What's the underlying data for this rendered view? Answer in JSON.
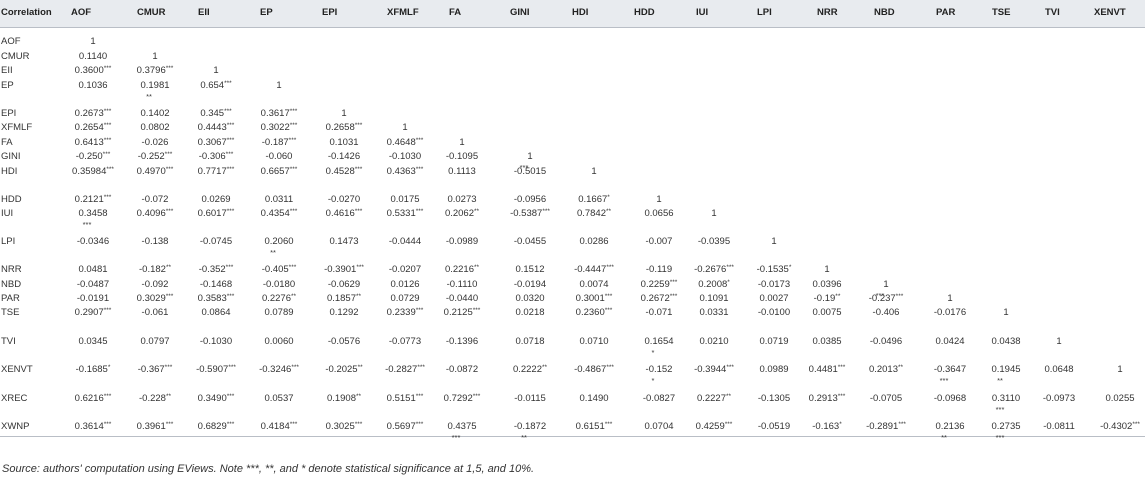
{
  "table": {
    "corner_label": "Correlation",
    "columns": [
      "AOF",
      "CMUR",
      "EII",
      "EP",
      "EPI",
      "XFMLF",
      "FA",
      "GINI",
      "HDI",
      "HDD",
      "IUI",
      "LPI",
      "NRR",
      "NBD",
      "PAR",
      "TSE",
      "TVI",
      "XENVT"
    ],
    "rows": [
      {
        "label": "AOF",
        "cells": [
          [
            "1",
            ""
          ]
        ]
      },
      {
        "label": "CMUR",
        "cells": [
          [
            "0.1140",
            ""
          ],
          [
            "1",
            ""
          ]
        ]
      },
      {
        "label": "EII",
        "cells": [
          [
            "0.3600",
            "***"
          ],
          [
            "0.3796",
            "***"
          ],
          [
            "1",
            ""
          ]
        ]
      },
      {
        "label": "EP",
        "cells": [
          [
            "0.1036",
            ""
          ],
          [
            "0.1981",
            ""
          ],
          [
            "0.654",
            "***"
          ],
          [
            "1",
            ""
          ]
        ]
      },
      {
        "label": "EPI",
        "cells": [
          [
            "0.2673",
            "***"
          ],
          [
            "0.1402",
            ""
          ],
          [
            "0.345",
            "***"
          ],
          [
            "0.3617",
            "***"
          ],
          [
            "1",
            ""
          ]
        ]
      },
      {
        "label": "XFMLF",
        "cells": [
          [
            "0.2654",
            "***"
          ],
          [
            "0.0802",
            ""
          ],
          [
            "0.4443",
            "***"
          ],
          [
            "0.3022",
            "***"
          ],
          [
            "0.2658",
            "***"
          ],
          [
            "1",
            ""
          ]
        ]
      },
      {
        "label": "FA",
        "cells": [
          [
            "0.6413",
            "***"
          ],
          [
            "-0.026",
            ""
          ],
          [
            "0.3067",
            "***"
          ],
          [
            "-0.187",
            "***"
          ],
          [
            "0.1031",
            ""
          ],
          [
            "0.4648",
            "***"
          ],
          [
            "1",
            ""
          ]
        ]
      },
      {
        "label": "GINI",
        "cells": [
          [
            "-0.250",
            "***"
          ],
          [
            "-0.252",
            "***"
          ],
          [
            "-0.306",
            "***"
          ],
          [
            "-0.060",
            ""
          ],
          [
            "-0.1426",
            ""
          ],
          [
            "-0.1030",
            ""
          ],
          [
            "-0.1095",
            ""
          ],
          [
            "1",
            ""
          ]
        ]
      },
      {
        "label": "HDI",
        "cells": [
          [
            "0.35984",
            "***"
          ],
          [
            "0.4970",
            "***"
          ],
          [
            "0.7717",
            "***"
          ],
          [
            "0.6657",
            "***"
          ],
          [
            "0.4528",
            "***"
          ],
          [
            "0.4363",
            "***"
          ],
          [
            "0.1113",
            ""
          ],
          [
            "-0.5015",
            ""
          ],
          [
            "1",
            ""
          ]
        ]
      },
      {
        "label": "HDD",
        "cells": [
          [
            "0.2121",
            "***"
          ],
          [
            "-0.072",
            ""
          ],
          [
            "0.0269",
            ""
          ],
          [
            "0.0311",
            ""
          ],
          [
            "-0.0270",
            ""
          ],
          [
            "0.0175",
            ""
          ],
          [
            "0.0273",
            ""
          ],
          [
            "-0.0956",
            ""
          ],
          [
            "0.1667",
            "*"
          ],
          [
            "1",
            ""
          ]
        ]
      },
      {
        "label": "IUI",
        "cells": [
          [
            "0.3458",
            ""
          ],
          [
            "0.4096",
            "***"
          ],
          [
            "0.6017",
            "***"
          ],
          [
            "0.4354",
            "***"
          ],
          [
            "0.4616",
            "***"
          ],
          [
            "0.5331",
            "***"
          ],
          [
            "0.2062",
            "**"
          ],
          [
            "-0.5387",
            "***"
          ],
          [
            "0.7842",
            "**"
          ],
          [
            "0.0656",
            ""
          ],
          [
            "1",
            ""
          ]
        ]
      },
      {
        "label": "LPI",
        "cells": [
          [
            "-0.0346",
            ""
          ],
          [
            "-0.138",
            ""
          ],
          [
            "-0.0745",
            ""
          ],
          [
            "0.2060",
            ""
          ],
          [
            "0.1473",
            ""
          ],
          [
            "-0.0444",
            ""
          ],
          [
            "-0.0989",
            ""
          ],
          [
            "-0.0455",
            ""
          ],
          [
            "0.0286",
            ""
          ],
          [
            "-0.007",
            ""
          ],
          [
            "-0.0395",
            ""
          ],
          [
            "1",
            ""
          ]
        ]
      },
      {
        "label": "NRR",
        "cells": [
          [
            "0.0481",
            ""
          ],
          [
            "-0.182",
            "**"
          ],
          [
            "-0.352",
            "***"
          ],
          [
            "-0.405",
            "***"
          ],
          [
            "-0.3901",
            "***"
          ],
          [
            "-0.0207",
            ""
          ],
          [
            "0.2216",
            "**"
          ],
          [
            "0.1512",
            ""
          ],
          [
            "-0.4447",
            "***"
          ],
          [
            "-0.119",
            ""
          ],
          [
            "-0.2676",
            "***"
          ],
          [
            "-0.1535",
            "*"
          ],
          [
            "1",
            ""
          ]
        ]
      },
      {
        "label": "NBD",
        "cells": [
          [
            "-0.0487",
            ""
          ],
          [
            "-0.092",
            ""
          ],
          [
            "-0.1468",
            ""
          ],
          [
            "-0.0180",
            ""
          ],
          [
            "-0.0629",
            ""
          ],
          [
            "0.0126",
            ""
          ],
          [
            "-0.1110",
            ""
          ],
          [
            "-0.0194",
            ""
          ],
          [
            "0.0074",
            ""
          ],
          [
            "0.2259",
            "***"
          ],
          [
            "0.2008",
            "*"
          ],
          [
            "-0.0173",
            ""
          ],
          [
            "0.0396",
            ""
          ],
          [
            "1",
            ""
          ]
        ]
      },
      {
        "label": "PAR",
        "cells": [
          [
            "-0.0191",
            ""
          ],
          [
            "0.3029",
            "***"
          ],
          [
            "0.3583",
            "***"
          ],
          [
            "0.2276",
            "**"
          ],
          [
            "0.1857",
            "**"
          ],
          [
            "0.0729",
            ""
          ],
          [
            "-0.0440",
            ""
          ],
          [
            "0.0320",
            ""
          ],
          [
            "0.3001",
            "***"
          ],
          [
            "0.2672",
            "***"
          ],
          [
            "0.1091",
            ""
          ],
          [
            "0.0027",
            ""
          ],
          [
            "-0.19",
            "**"
          ],
          [
            "-0.237",
            "***"
          ],
          [
            "1",
            ""
          ]
        ]
      },
      {
        "label": "TSE",
        "cells": [
          [
            "0.2907",
            "***"
          ],
          [
            "-0.061",
            ""
          ],
          [
            "0.0864",
            ""
          ],
          [
            "0.0789",
            ""
          ],
          [
            "0.1292",
            ""
          ],
          [
            "0.2339",
            "***"
          ],
          [
            "0.2125",
            "***"
          ],
          [
            "0.0218",
            ""
          ],
          [
            "0.2360",
            "***"
          ],
          [
            "-0.071",
            ""
          ],
          [
            "0.0331",
            ""
          ],
          [
            "-0.0100",
            ""
          ],
          [
            "0.0075",
            ""
          ],
          [
            "-0.406",
            ""
          ],
          [
            "-0.0176",
            ""
          ],
          [
            "1",
            ""
          ]
        ]
      },
      {
        "label": "TVI",
        "cells": [
          [
            "0.0345",
            ""
          ],
          [
            "0.0797",
            ""
          ],
          [
            "-0.1030",
            ""
          ],
          [
            "0.0060",
            ""
          ],
          [
            "-0.0576",
            ""
          ],
          [
            "-0.0773",
            ""
          ],
          [
            "-0.1396",
            ""
          ],
          [
            "0.0718",
            ""
          ],
          [
            "0.0710",
            ""
          ],
          [
            "0.1654",
            ""
          ],
          [
            "0.0210",
            ""
          ],
          [
            "0.0719",
            ""
          ],
          [
            "0.0385",
            ""
          ],
          [
            "-0.0496",
            ""
          ],
          [
            "0.0424",
            ""
          ],
          [
            "0.0438",
            ""
          ],
          [
            "1",
            ""
          ]
        ]
      },
      {
        "label": "XENVT",
        "cells": [
          [
            "-0.1685",
            "*"
          ],
          [
            "-0.367",
            "***"
          ],
          [
            "-0.5907",
            "***"
          ],
          [
            "-0.3246",
            "***"
          ],
          [
            "-0.2025",
            "**"
          ],
          [
            "-0.2827",
            "***"
          ],
          [
            "-0.0872",
            ""
          ],
          [
            "0.2222",
            "**"
          ],
          [
            "-0.4867",
            "***"
          ],
          [
            "-0.152",
            ""
          ],
          [
            "-0.3944",
            "***"
          ],
          [
            "0.0989",
            ""
          ],
          [
            "0.4481",
            "***"
          ],
          [
            "0.2013",
            "**"
          ],
          [
            "-0.3647",
            ""
          ],
          [
            "0.1945",
            ""
          ],
          [
            "0.0648",
            ""
          ],
          [
            "1",
            ""
          ]
        ]
      },
      {
        "label": "XREC",
        "cells": [
          [
            "0.6216",
            "***"
          ],
          [
            "-0.228",
            "**"
          ],
          [
            "0.3490",
            "***"
          ],
          [
            "0.0537",
            ""
          ],
          [
            "0.1908",
            "**"
          ],
          [
            "0.5151",
            "***"
          ],
          [
            "0.7292",
            "***"
          ],
          [
            "-0.0115",
            ""
          ],
          [
            "0.1490",
            ""
          ],
          [
            "-0.0827",
            ""
          ],
          [
            "0.2227",
            "**"
          ],
          [
            "-0.1305",
            ""
          ],
          [
            "0.2913",
            "***"
          ],
          [
            "-0.0705",
            ""
          ],
          [
            "-0.0968",
            ""
          ],
          [
            "0.3110",
            ""
          ],
          [
            "-0.0973",
            ""
          ],
          [
            "0.0255",
            ""
          ]
        ]
      },
      {
        "label": "XWNP",
        "cells": [
          [
            "0.3614",
            "***"
          ],
          [
            "0.3961",
            "***"
          ],
          [
            "0.6829",
            "***"
          ],
          [
            "0.4184",
            "***"
          ],
          [
            "0.3025",
            "***"
          ],
          [
            "0.5697",
            "***"
          ],
          [
            "0.4375",
            ""
          ],
          [
            "-0.1872",
            ""
          ],
          [
            "0.6151",
            "***"
          ],
          [
            "0.0704",
            ""
          ],
          [
            "0.4259",
            "***"
          ],
          [
            "-0.0519",
            ""
          ],
          [
            "-0.163",
            "*"
          ],
          [
            "-0.2891",
            "***"
          ],
          [
            "0.2136",
            ""
          ],
          [
            "0.2735",
            ""
          ],
          [
            "-0.0811",
            ""
          ],
          [
            "-0.4302",
            "***"
          ]
        ]
      }
    ],
    "overflow_marks": [
      {
        "row": 3,
        "col": 1,
        "text": "**"
      },
      {
        "row": 7,
        "col": 7,
        "text": "***"
      },
      {
        "row": 10,
        "col": 0,
        "text": "***"
      },
      {
        "row": 11,
        "col": 3,
        "text": "**"
      },
      {
        "row": 13,
        "col": 13,
        "text": "***"
      },
      {
        "row": 16,
        "col": 9,
        "text": "*"
      },
      {
        "row": 17,
        "col": 9,
        "text": "*"
      },
      {
        "row": 17,
        "col": 14,
        "text": "***"
      },
      {
        "row": 17,
        "col": 15,
        "text": "**"
      },
      {
        "row": 18,
        "col": 15,
        "text": "***"
      },
      {
        "row": 19,
        "col": 6,
        "text": "***"
      },
      {
        "row": 19,
        "col": 7,
        "text": "**"
      },
      {
        "row": 19,
        "col": 14,
        "text": "**"
      },
      {
        "row": 19,
        "col": 15,
        "text": "***"
      }
    ]
  },
  "caption": "Source: authors' computation using EViews. Note ***, **, and * denote statistical significance at 1,5, and 10%."
}
